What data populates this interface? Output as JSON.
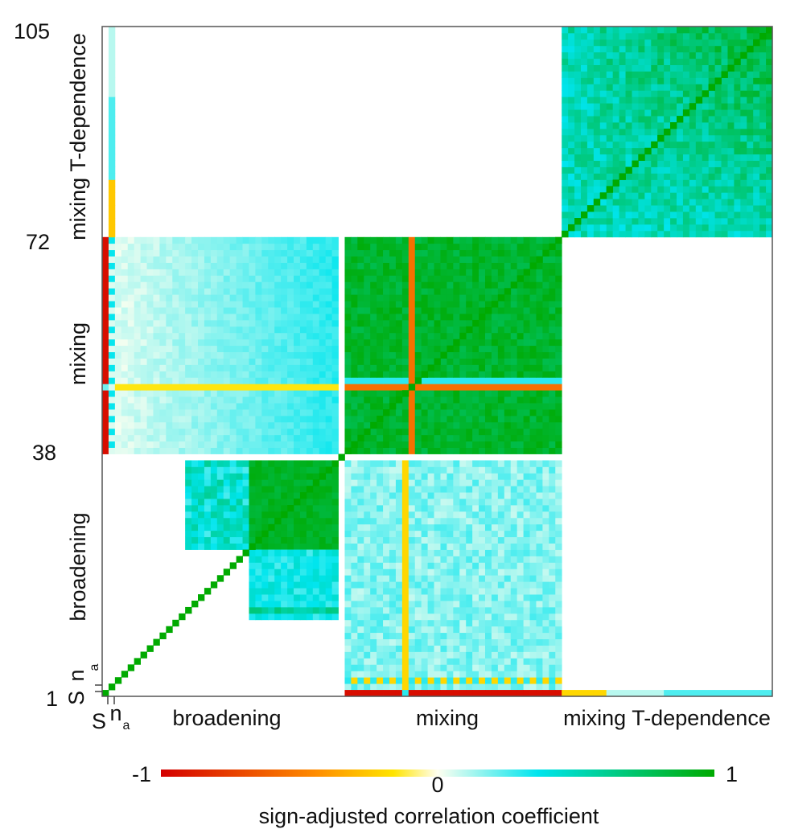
{
  "chart_data": {
    "type": "heatmap",
    "n_params": 105,
    "y_ticks": [
      "1",
      "38",
      "72",
      "105"
    ],
    "x_group_labels": [
      "broadening",
      "mixing",
      "mixing T-dependence"
    ],
    "y_group_labels": [
      "broadening",
      "mixing",
      "mixing T-dependence"
    ],
    "first_params": {
      "s_label": "S",
      "n_label": "n",
      "n_sub": "a"
    },
    "colorbar": {
      "title": "sign-adjusted correlation coefficient",
      "min_label": "-1",
      "mid_label": "0",
      "max_label": "1",
      "range": [
        -1,
        1
      ],
      "colors": [
        "#d40000",
        "#ffd700",
        "#fffff0",
        "#00e5ee",
        "#00aa00"
      ]
    },
    "blocks": [
      {
        "note": "S row/col vs mixing",
        "rows": [
          38,
          72
        ],
        "cols": [
          1,
          1
        ],
        "value": -0.95
      },
      {
        "note": "n_a vs mixing",
        "rows": [
          38,
          72
        ],
        "cols": [
          2,
          2
        ],
        "value": 0.15
      },
      {
        "note": "broadening vs mixing",
        "rows": [
          38,
          72
        ],
        "cols": [
          3,
          37
        ],
        "value": 0.25
      },
      {
        "note": "mixing vs mixing",
        "rows": [
          38,
          72
        ],
        "cols": [
          38,
          72
        ],
        "value": 0.92
      },
      {
        "note": "S vs mixing T-dep",
        "rows": [
          72,
          105
        ],
        "cols": [
          1,
          1
        ],
        "value": 0.2
      },
      {
        "note": "mixing T-dep vs mixing T-dep",
        "rows": [
          72,
          105
        ],
        "cols": [
          72,
          105
        ],
        "value": 0.7
      },
      {
        "note": "broadening upper sub-block",
        "rows": [
          24,
          37
        ],
        "cols": [
          15,
          37
        ],
        "value": 0.85
      },
      {
        "note": "broadening left columns",
        "rows": [
          24,
          37
        ],
        "cols": [
          15,
          24
        ],
        "value": 0.45
      },
      {
        "note": "broadening vs broadening lower",
        "rows": [
          13,
          23
        ],
        "cols": [
          25,
          37
        ],
        "value": 0.3
      },
      {
        "note": "mixing vs broadening",
        "rows": [
          1,
          37
        ],
        "cols": [
          38,
          72
        ],
        "value": 0.15
      },
      {
        "note": "S vs mixing (bottom row)",
        "rows": [
          1,
          1
        ],
        "cols": [
          38,
          72
        ],
        "value": -0.95
      },
      {
        "note": "S vs mixing T-dep (bottom row)",
        "rows": [
          1,
          1
        ],
        "cols": [
          72,
          105
        ],
        "value": 0.1
      }
    ]
  }
}
